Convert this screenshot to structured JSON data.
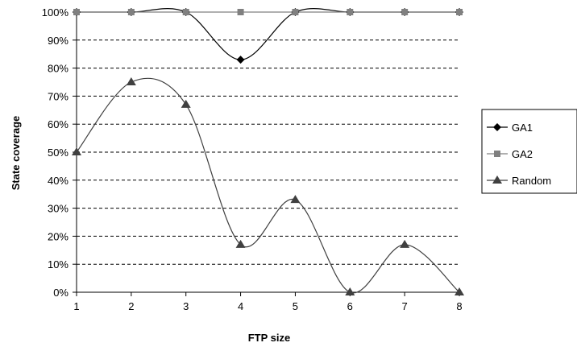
{
  "chart_data": {
    "type": "line",
    "title": "",
    "xlabel": "FTP size",
    "ylabel": "State coverage",
    "x": [
      1,
      2,
      3,
      4,
      5,
      6,
      7,
      8
    ],
    "x_ticks": [
      "1",
      "2",
      "3",
      "4",
      "5",
      "6",
      "7",
      "8"
    ],
    "y_ticks": [
      "0%",
      "10%",
      "20%",
      "30%",
      "40%",
      "50%",
      "60%",
      "70%",
      "80%",
      "90%",
      "100%"
    ],
    "ylim": [
      0,
      100
    ],
    "grid": "horizontal dashed",
    "legend_position": "right",
    "series": [
      {
        "name": "GA1",
        "values": [
          100,
          100,
          100,
          83,
          100,
          100,
          100,
          100
        ],
        "marker": "diamond",
        "color": "#000000"
      },
      {
        "name": "GA2",
        "values": [
          100,
          100,
          100,
          100,
          100,
          100,
          100,
          100
        ],
        "marker": "square",
        "color": "#808080"
      },
      {
        "name": "Random",
        "values": [
          50,
          75,
          67,
          17,
          33,
          0,
          17,
          0
        ],
        "marker": "triangle",
        "color": "#404040"
      }
    ]
  }
}
